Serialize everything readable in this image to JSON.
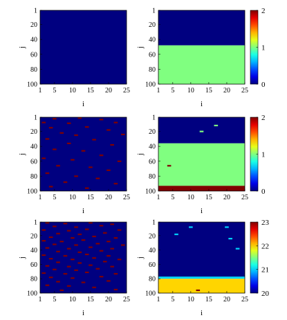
{
  "chart_data": [
    {
      "type": "heatmap",
      "id": "r1-left",
      "xlabel": "i",
      "ylabel": "j",
      "xlim": [
        1,
        25
      ],
      "ylim": [
        1,
        100
      ],
      "xticks": [
        "1",
        "5",
        "10",
        "15",
        "20",
        "25"
      ],
      "yticks": [
        "1",
        "20",
        "40",
        "60",
        "80",
        "100"
      ],
      "clim": [
        0,
        2
      ],
      "colormap": "jet",
      "bands": [
        {
          "j_from": 1,
          "j_to": 100,
          "value": 0
        }
      ],
      "marks": [],
      "colorbar": null
    },
    {
      "type": "heatmap",
      "id": "r1-right",
      "xlabel": "i",
      "ylabel": "j",
      "xlim": [
        1,
        25
      ],
      "ylim": [
        1,
        100
      ],
      "xticks": [
        "1",
        "5",
        "10",
        "15",
        "20",
        "25"
      ],
      "yticks": [
        "1",
        "20",
        "40",
        "60",
        "80",
        "100"
      ],
      "clim": [
        0,
        2
      ],
      "colormap": "jet",
      "bands": [
        {
          "j_from": 1,
          "j_to": 48,
          "value": 0
        },
        {
          "j_from": 48,
          "j_to": 100,
          "value": 1
        }
      ],
      "marks": [],
      "colorbar": {
        "ticks": [
          "2",
          "1",
          "0"
        ]
      }
    },
    {
      "type": "heatmap",
      "id": "r2-left",
      "xlabel": "i",
      "ylabel": "j",
      "xlim": [
        1,
        25
      ],
      "ylim": [
        1,
        100
      ],
      "xticks": [
        "1",
        "5",
        "10",
        "15",
        "20",
        "25"
      ],
      "yticks": [
        "1",
        "20",
        "40",
        "60",
        "80",
        "100"
      ],
      "clim": [
        0,
        2
      ],
      "colormap": "jet",
      "bands": [
        {
          "j_from": 1,
          "j_to": 100,
          "value": 0
        }
      ],
      "marks": [
        {
          "i": 5,
          "j": 3,
          "value": 2
        },
        {
          "i": 12,
          "j": 2,
          "value": 2
        },
        {
          "i": 18,
          "j": 4,
          "value": 2
        },
        {
          "i": 2,
          "j": 8,
          "value": 2
        },
        {
          "i": 9,
          "j": 9,
          "value": 2
        },
        {
          "i": 22,
          "j": 8,
          "value": 2
        },
        {
          "i": 4,
          "j": 15,
          "value": 2
        },
        {
          "i": 14,
          "j": 14,
          "value": 2
        },
        {
          "i": 20,
          "j": 18,
          "value": 2
        },
        {
          "i": 7,
          "j": 22,
          "value": 2
        },
        {
          "i": 11,
          "j": 25,
          "value": 2
        },
        {
          "i": 24,
          "j": 24,
          "value": 2
        },
        {
          "i": 3,
          "j": 30,
          "value": 2
        },
        {
          "i": 16,
          "j": 31,
          "value": 2
        },
        {
          "i": 9,
          "j": 36,
          "value": 2
        },
        {
          "i": 21,
          "j": 38,
          "value": 2
        },
        {
          "i": 5,
          "j": 44,
          "value": 2
        },
        {
          "i": 13,
          "j": 46,
          "value": 2
        },
        {
          "i": 18,
          "j": 52,
          "value": 2
        },
        {
          "i": 2,
          "j": 56,
          "value": 2
        },
        {
          "i": 10,
          "j": 58,
          "value": 2
        },
        {
          "i": 23,
          "j": 60,
          "value": 2
        },
        {
          "i": 6,
          "j": 66,
          "value": 2
        },
        {
          "i": 15,
          "j": 68,
          "value": 2
        },
        {
          "i": 20,
          "j": 72,
          "value": 2
        },
        {
          "i": 3,
          "j": 76,
          "value": 2
        },
        {
          "i": 11,
          "j": 80,
          "value": 2
        },
        {
          "i": 17,
          "j": 83,
          "value": 2
        },
        {
          "i": 8,
          "j": 88,
          "value": 2
        },
        {
          "i": 22,
          "j": 90,
          "value": 2
        },
        {
          "i": 4,
          "j": 94,
          "value": 2
        },
        {
          "i": 14,
          "j": 96,
          "value": 2
        }
      ],
      "colorbar": null
    },
    {
      "type": "heatmap",
      "id": "r2-right",
      "xlabel": "i",
      "ylabel": "j",
      "xlim": [
        1,
        25
      ],
      "ylim": [
        1,
        100
      ],
      "xticks": [
        "1",
        "5",
        "10",
        "15",
        "20",
        "25"
      ],
      "yticks": [
        "1",
        "20",
        "40",
        "60",
        "80",
        "100"
      ],
      "clim": [
        0,
        2
      ],
      "colormap": "jet",
      "bands": [
        {
          "j_from": 1,
          "j_to": 36,
          "value": 0
        },
        {
          "j_from": 36,
          "j_to": 93,
          "value": 1
        },
        {
          "j_from": 93,
          "j_to": 100,
          "value": 2
        }
      ],
      "marks": [
        {
          "i": 17,
          "j": 12,
          "value": 1
        },
        {
          "i": 13,
          "j": 20,
          "value": 1
        },
        {
          "i": 4,
          "j": 66,
          "value": 2
        }
      ],
      "colorbar": {
        "ticks": [
          "2",
          "1",
          "0"
        ]
      }
    },
    {
      "type": "heatmap",
      "id": "r3-left",
      "xlabel": "i",
      "ylabel": "j",
      "xlim": [
        1,
        25
      ],
      "ylim": [
        1,
        100
      ],
      "xticks": [
        "1",
        "5",
        "10",
        "15",
        "20",
        "25"
      ],
      "yticks": [
        "1",
        "20",
        "40",
        "60",
        "80",
        "100"
      ],
      "clim": [
        20,
        23
      ],
      "colormap": "jet",
      "bands": [
        {
          "j_from": 1,
          "j_to": 100,
          "value": 20
        }
      ],
      "marks": [
        {
          "i": 3,
          "j": 2,
          "value": 23
        },
        {
          "i": 8,
          "j": 3,
          "value": 23
        },
        {
          "i": 15,
          "j": 2,
          "value": 23
        },
        {
          "i": 21,
          "j": 4,
          "value": 23
        },
        {
          "i": 5,
          "j": 7,
          "value": 23
        },
        {
          "i": 11,
          "j": 8,
          "value": 23
        },
        {
          "i": 18,
          "j": 6,
          "value": 23
        },
        {
          "i": 2,
          "j": 12,
          "value": 23
        },
        {
          "i": 9,
          "j": 13,
          "value": 23
        },
        {
          "i": 14,
          "j": 11,
          "value": 23
        },
        {
          "i": 23,
          "j": 12,
          "value": 23
        },
        {
          "i": 6,
          "j": 17,
          "value": 23
        },
        {
          "i": 12,
          "j": 18,
          "value": 23
        },
        {
          "i": 19,
          "j": 16,
          "value": 23
        },
        {
          "i": 4,
          "j": 22,
          "value": 23
        },
        {
          "i": 10,
          "j": 23,
          "value": 23
        },
        {
          "i": 16,
          "j": 21,
          "value": 23
        },
        {
          "i": 22,
          "j": 23,
          "value": 23
        },
        {
          "i": 2,
          "j": 27,
          "value": 23
        },
        {
          "i": 7,
          "j": 28,
          "value": 23
        },
        {
          "i": 13,
          "j": 26,
          "value": 23
        },
        {
          "i": 20,
          "j": 28,
          "value": 23
        },
        {
          "i": 5,
          "j": 32,
          "value": 23
        },
        {
          "i": 11,
          "j": 33,
          "value": 23
        },
        {
          "i": 17,
          "j": 31,
          "value": 23
        },
        {
          "i": 24,
          "j": 33,
          "value": 23
        },
        {
          "i": 3,
          "j": 37,
          "value": 23
        },
        {
          "i": 9,
          "j": 38,
          "value": 23
        },
        {
          "i": 15,
          "j": 36,
          "value": 23
        },
        {
          "i": 21,
          "j": 38,
          "value": 23
        },
        {
          "i": 6,
          "j": 42,
          "value": 23
        },
        {
          "i": 12,
          "j": 43,
          "value": 23
        },
        {
          "i": 18,
          "j": 41,
          "value": 23
        },
        {
          "i": 2,
          "j": 47,
          "value": 23
        },
        {
          "i": 8,
          "j": 48,
          "value": 23
        },
        {
          "i": 14,
          "j": 46,
          "value": 23
        },
        {
          "i": 20,
          "j": 48,
          "value": 23
        },
        {
          "i": 4,
          "j": 52,
          "value": 23
        },
        {
          "i": 10,
          "j": 53,
          "value": 23
        },
        {
          "i": 16,
          "j": 51,
          "value": 23
        },
        {
          "i": 23,
          "j": 53,
          "value": 23
        },
        {
          "i": 6,
          "j": 57,
          "value": 23
        },
        {
          "i": 12,
          "j": 58,
          "value": 23
        },
        {
          "i": 19,
          "j": 56,
          "value": 23
        },
        {
          "i": 3,
          "j": 62,
          "value": 23
        },
        {
          "i": 9,
          "j": 63,
          "value": 23
        },
        {
          "i": 15,
          "j": 61,
          "value": 23
        },
        {
          "i": 21,
          "j": 63,
          "value": 23
        },
        {
          "i": 5,
          "j": 67,
          "value": 23
        },
        {
          "i": 11,
          "j": 68,
          "value": 23
        },
        {
          "i": 17,
          "j": 66,
          "value": 23
        },
        {
          "i": 2,
          "j": 72,
          "value": 23
        },
        {
          "i": 8,
          "j": 73,
          "value": 23
        },
        {
          "i": 14,
          "j": 71,
          "value": 23
        },
        {
          "i": 22,
          "j": 73,
          "value": 23
        },
        {
          "i": 4,
          "j": 78,
          "value": 23
        },
        {
          "i": 10,
          "j": 79,
          "value": 23
        },
        {
          "i": 18,
          "j": 77,
          "value": 23
        },
        {
          "i": 6,
          "j": 84,
          "value": 23
        },
        {
          "i": 13,
          "j": 85,
          "value": 23
        },
        {
          "i": 20,
          "j": 83,
          "value": 23
        },
        {
          "i": 3,
          "j": 89,
          "value": 23
        },
        {
          "i": 9,
          "j": 90,
          "value": 23
        },
        {
          "i": 16,
          "j": 92,
          "value": 23
        },
        {
          "i": 7,
          "j": 96,
          "value": 23
        },
        {
          "i": 22,
          "j": 95,
          "value": 23
        }
      ],
      "colorbar": null
    },
    {
      "type": "heatmap",
      "id": "r3-right",
      "xlabel": "i",
      "ylabel": "j",
      "xlim": [
        1,
        25
      ],
      "ylim": [
        1,
        100
      ],
      "xticks": [
        "1",
        "5",
        "10",
        "15",
        "20",
        "25"
      ],
      "yticks": [
        "1",
        "20",
        "40",
        "60",
        "80",
        "100"
      ],
      "clim": [
        20,
        23
      ],
      "colormap": "jet",
      "bands": [
        {
          "j_from": 1,
          "j_to": 77,
          "value": 20
        },
        {
          "j_from": 77,
          "j_to": 80,
          "value": 21
        },
        {
          "j_from": 80,
          "j_to": 100,
          "value": 22
        }
      ],
      "marks": [
        {
          "i": 10,
          "j": 8,
          "value": 21
        },
        {
          "i": 20,
          "j": 8,
          "value": 21
        },
        {
          "i": 6,
          "j": 18,
          "value": 21
        },
        {
          "i": 21,
          "j": 24,
          "value": 21
        },
        {
          "i": 23,
          "j": 38,
          "value": 21
        },
        {
          "i": 12,
          "j": 96,
          "value": 23
        }
      ],
      "colorbar": {
        "ticks": [
          "23",
          "22",
          "21",
          "20"
        ]
      }
    }
  ]
}
